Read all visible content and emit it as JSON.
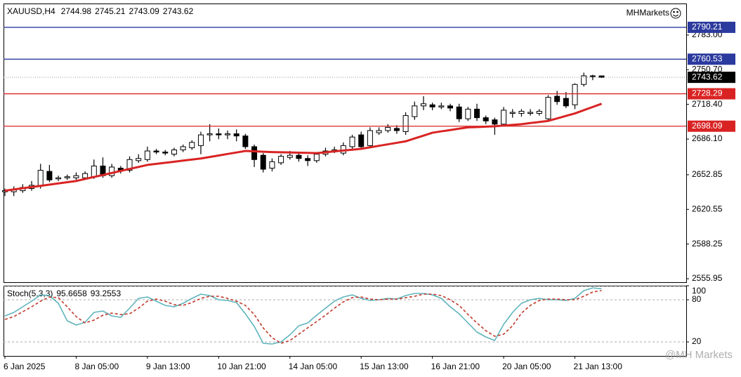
{
  "chart_data": [
    {
      "type": "candlestick",
      "symbol": "XAUUSD,H4",
      "brand": "MHMarkets",
      "categories": [
        "6 Jan 2025",
        null,
        null,
        null,
        null,
        null,
        null,
        null,
        "8 Jan 05:00",
        null,
        null,
        null,
        null,
        null,
        null,
        null,
        "9 Jan 13:00",
        null,
        null,
        null,
        null,
        null,
        null,
        null,
        "10 Jan 21:00",
        null,
        null,
        null,
        null,
        null,
        null,
        null,
        "14 Jan 05:00",
        null,
        null,
        null,
        null,
        null,
        null,
        null,
        "15 Jan 13:00",
        null,
        null,
        null,
        null,
        null,
        null,
        null,
        "16 Jan 21:00",
        null,
        null,
        null,
        null,
        null,
        null,
        null,
        "20 Jan 05:00",
        null,
        null,
        null,
        null,
        null,
        null,
        null,
        "21 Jan 13:00",
        null,
        null,
        null
      ],
      "open": [
        2637,
        2637,
        2638,
        2640,
        2643,
        2656,
        2649,
        2650,
        2650,
        2650,
        2651,
        2661,
        2652,
        2659,
        2657,
        2666,
        2667,
        2675,
        2674,
        2672,
        2676,
        2678,
        2680,
        2690,
        2691,
        2690,
        2691,
        2689,
        2679,
        2671,
        2659,
        2664,
        2669,
        2671,
        2668,
        2666,
        2672,
        2675,
        2673,
        2679,
        2690,
        2680,
        2692,
        2694,
        2696,
        2693,
        2707,
        2717,
        2718,
        2716,
        2717,
        2716,
        2705,
        2714,
        2706,
        2704,
        2700,
        2710,
        2710,
        2710,
        2710,
        2705,
        2726,
        2724,
        2718,
        2737,
        2745,
        2744.98
      ],
      "high": [
        2640,
        2642,
        2644,
        2647,
        2663,
        2662,
        2652,
        2653,
        2655,
        2656,
        2667,
        2669,
        2663,
        2661,
        2670,
        2672,
        2679,
        2677,
        2676,
        2678,
        2681,
        2685,
        2693,
        2700,
        2696,
        2694,
        2695,
        2691,
        2681,
        2673,
        2668,
        2672,
        2675,
        2674,
        2671,
        2674,
        2678,
        2679,
        2683,
        2690,
        2693,
        2697,
        2697,
        2700,
        2699,
        2711,
        2721,
        2726,
        2720,
        2720,
        2719,
        2719,
        2716,
        2719,
        2708,
        2706,
        2716,
        2714,
        2714,
        2714,
        2714,
        2727,
        2731,
        2730,
        2738,
        2748,
        2746,
        2745.21
      ],
      "low": [
        2633,
        2633,
        2636,
        2638,
        2640,
        2646,
        2647,
        2648,
        2648,
        2648,
        2649,
        2650,
        2650,
        2654,
        2655,
        2664,
        2665,
        2672,
        2671,
        2670,
        2674,
        2676,
        2672,
        2684,
        2686,
        2686,
        2684,
        2677,
        2660,
        2655,
        2656,
        2662,
        2667,
        2665,
        2661,
        2664,
        2670,
        2673,
        2671,
        2677,
        2676,
        2678,
        2690,
        2692,
        2691,
        2690,
        2704,
        2713,
        2713,
        2714,
        2712,
        2702,
        2703,
        2703,
        2700,
        2690,
        2698,
        2706,
        2707,
        2708,
        2708,
        2703,
        2718,
        2715,
        2714,
        2735,
        2741,
        2743.09
      ],
      "close": [
        2638,
        2639,
        2641,
        2643,
        2657,
        2648,
        2650,
        2651,
        2652,
        2654,
        2661,
        2652,
        2660,
        2657,
        2667,
        2668,
        2675,
        2674,
        2673,
        2676,
        2679,
        2683,
        2690,
        2691,
        2690,
        2691,
        2689,
        2679,
        2667,
        2658,
        2665,
        2670,
        2671,
        2668,
        2666,
        2672,
        2675,
        2676,
        2680,
        2688,
        2679,
        2694,
        2694,
        2697,
        2694,
        2708,
        2717,
        2719,
        2716,
        2717,
        2715,
        2705,
        2714,
        2706,
        2703,
        2700,
        2713,
        2711,
        2712,
        2711,
        2712,
        2725,
        2721,
        2717,
        2737,
        2745,
        2745,
        2743.62
      ],
      "ma": {
        "color": "#d92323",
        "values": [
          2638,
          2639.1,
          2640.3,
          2641.4,
          2642.5,
          2643.6,
          2644.8,
          2645.9,
          2647,
          2648.9,
          2650.8,
          2652.6,
          2654.5,
          2656.4,
          2658.3,
          2660.1,
          2662,
          2663,
          2664,
          2665,
          2666,
          2667,
          2668,
          2669.4,
          2670.8,
          2672.2,
          2673.6,
          2675,
          2674.7,
          2674.3,
          2674,
          2673.8,
          2673.6,
          2673.4,
          2673.2,
          2673,
          2673.8,
          2674.6,
          2675.4,
          2676.2,
          2677,
          2678.4,
          2679.8,
          2681.2,
          2682.6,
          2684,
          2686.7,
          2689.3,
          2692,
          2693.3,
          2694.5,
          2695.8,
          2697,
          2697.3,
          2697.7,
          2698,
          2698.7,
          2699.3,
          2700,
          2701,
          2702,
          2703,
          2705.3,
          2707.7,
          2710,
          2713,
          2716,
          2719
        ]
      },
      "levels": [
        {
          "value": 2790.21,
          "color": "#2b3a9e"
        },
        {
          "value": 2760.53,
          "color": "#2b3a9e"
        },
        {
          "value": 2728.29,
          "color": "#d92323"
        },
        {
          "value": 2698.09,
          "color": "#d92323"
        }
      ],
      "ylim": [
        2552.7,
        2812.4
      ],
      "yticks": [
        {
          "value": 2783,
          "label": "2783.00"
        },
        {
          "value": 2750.7,
          "label": "2750.70"
        },
        {
          "value": 2718.4,
          "label": "2718.40"
        },
        {
          "value": 2686.1,
          "label": "2686.10"
        },
        2652.85,
        2620.55,
        2588.25,
        2555.95
      ]
    },
    {
      "type": "line",
      "label": "Stoch(5,3,3)",
      "series": [
        {
          "color": "#5fb4bc",
          "values": [
            57,
            62,
            70,
            78,
            87,
            86,
            75,
            50,
            44,
            48,
            62,
            64,
            57,
            55,
            68,
            82,
            84,
            78,
            72,
            70,
            75,
            82,
            88,
            86,
            80,
            79,
            76,
            60,
            42,
            18,
            17,
            20,
            30,
            43,
            47,
            58,
            68,
            78,
            84,
            87,
            82,
            79,
            80,
            82,
            81,
            86,
            89,
            89,
            87,
            82,
            70,
            60,
            47,
            34,
            27,
            22,
            45,
            62,
            75,
            80,
            82,
            80,
            80,
            79,
            82,
            93,
            97,
            95.6658
          ]
        },
        {
          "color": "#c0392b",
          "dash": true,
          "values": [
            52,
            56,
            63,
            70,
            78,
            84,
            83,
            70,
            56,
            47,
            51,
            58,
            61,
            59,
            60,
            68,
            78,
            81,
            78,
            73,
            72,
            76,
            82,
            85,
            85,
            82,
            78,
            72,
            59,
            40,
            26,
            18,
            22,
            31,
            40,
            49,
            58,
            68,
            77,
            83,
            84,
            81,
            80,
            81,
            81,
            83,
            85,
            88,
            88,
            86,
            80,
            72,
            59,
            47,
            36,
            28,
            31,
            43,
            61,
            72,
            79,
            81,
            81,
            80,
            80,
            85,
            91,
            93.2553
          ]
        }
      ],
      "ylim": [
        0,
        100
      ],
      "yticks": [
        100,
        80,
        20
      ],
      "grid": true
    }
  ],
  "watermark": "@MH Markets"
}
